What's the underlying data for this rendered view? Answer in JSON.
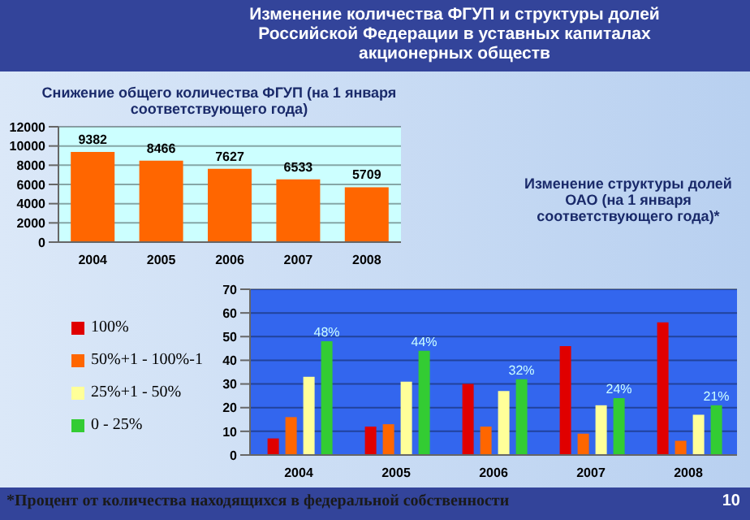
{
  "chart_data": [
    {
      "type": "bar",
      "title": "Изменение количества ФГУП и структуры долей Российской Федерации в уставных капиталах акционерных обществ",
      "subtitle": "Снижение общего количества ФГУП (на 1 января соответствующего года)",
      "categories": [
        "2004",
        "2005",
        "2006",
        "2007",
        "2008"
      ],
      "values": [
        9382,
        8466,
        7627,
        6533,
        5709
      ],
      "color": "#ff6600",
      "ylim": [
        0,
        12000
      ],
      "yticks": [
        0,
        2000,
        4000,
        6000,
        8000,
        10000,
        12000
      ],
      "grid": "y",
      "data_labels": true
    },
    {
      "type": "bar",
      "title": "Изменение структуры долей ОАО (на 1 января соответствующего года)*",
      "categories": [
        "2004",
        "2005",
        "2006",
        "2007",
        "2008"
      ],
      "series": [
        {
          "name": "100%",
          "color": "#e00000",
          "values": [
            7,
            12,
            30,
            46,
            56
          ]
        },
        {
          "name": "50%+1 - 100%-1",
          "color": "#ff6600",
          "values": [
            16,
            13,
            12,
            9,
            6
          ]
        },
        {
          "name": "25%+1 - 50%",
          "color": "#ffff99",
          "values": [
            33,
            31,
            27,
            21,
            17
          ]
        },
        {
          "name": "0 - 25%",
          "color": "#33cc33",
          "values": [
            48,
            44,
            32,
            24,
            21
          ],
          "value_labels": [
            "48%",
            "44%",
            "32%",
            "24%",
            "21%"
          ]
        }
      ],
      "ylim": [
        0,
        70
      ],
      "yticks": [
        0,
        10,
        20,
        30,
        40,
        50,
        60,
        70
      ],
      "grid": "y",
      "legend": "left",
      "annotations": [
        "*Процент от количества находящихся в федеральной собственности",
        "10"
      ]
    }
  ]
}
